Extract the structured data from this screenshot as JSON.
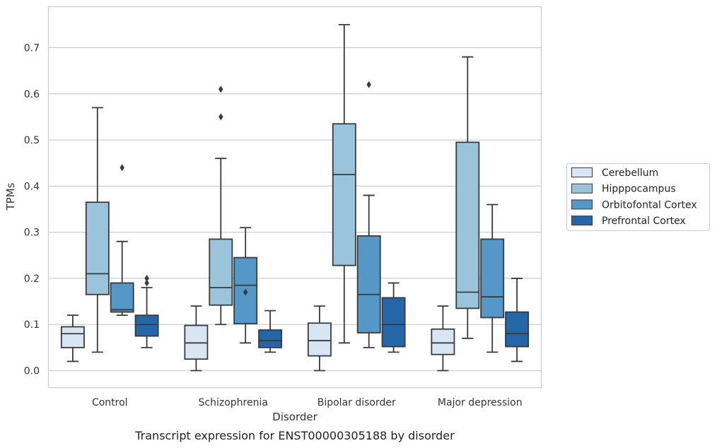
{
  "chart_data": {
    "type": "box",
    "title": "",
    "caption": "Transcript expression for ENST00000305188 by disorder",
    "xlabel": "Disorder",
    "ylabel": "TPMs",
    "ylim": [
      -0.036,
      0.79
    ],
    "yticks": [
      "0.0",
      "0.1",
      "0.2",
      "0.3",
      "0.4",
      "0.5",
      "0.6",
      "0.7"
    ],
    "grid": "horizontal",
    "legend_position": "right",
    "categories": [
      "Control",
      "Schizophrenia",
      "Bipolar disorder",
      "Major depression"
    ],
    "series": [
      {
        "name": "Cerebellum",
        "color": "#d8e6f4",
        "boxes": [
          {
            "whislo": 0.02,
            "q1": 0.05,
            "med": 0.08,
            "q3": 0.095,
            "whishi": 0.12,
            "fliers": []
          },
          {
            "whislo": 0.0,
            "q1": 0.025,
            "med": 0.06,
            "q3": 0.098,
            "whishi": 0.14,
            "fliers": []
          },
          {
            "whislo": 0.0,
            "q1": 0.032,
            "med": 0.065,
            "q3": 0.103,
            "whishi": 0.14,
            "fliers": []
          },
          {
            "whislo": 0.0,
            "q1": 0.035,
            "med": 0.06,
            "q3": 0.09,
            "whishi": 0.14,
            "fliers": []
          }
        ]
      },
      {
        "name": "Hipppocampus",
        "color": "#9ac4dc",
        "boxes": [
          {
            "whislo": 0.04,
            "q1": 0.165,
            "med": 0.21,
            "q3": 0.365,
            "whishi": 0.57,
            "fliers": []
          },
          {
            "whislo": 0.1,
            "q1": 0.142,
            "med": 0.18,
            "q3": 0.285,
            "whishi": 0.46,
            "fliers": [
              0.55,
              0.61
            ]
          },
          {
            "whislo": 0.06,
            "q1": 0.228,
            "med": 0.425,
            "q3": 0.535,
            "whishi": 0.75,
            "fliers": []
          },
          {
            "whislo": 0.07,
            "q1": 0.135,
            "med": 0.17,
            "q3": 0.495,
            "whishi": 0.68,
            "fliers": []
          }
        ]
      },
      {
        "name": "Orbitofontal Cortex",
        "color": "#5597c6",
        "boxes": [
          {
            "whislo": 0.12,
            "q1": 0.127,
            "med": 0.132,
            "q3": 0.19,
            "whishi": 0.28,
            "fliers": [
              0.44
            ]
          },
          {
            "whislo": 0.06,
            "q1": 0.102,
            "med": 0.185,
            "q3": 0.245,
            "whishi": 0.31,
            "fliers": [
              0.17
            ]
          },
          {
            "whislo": 0.05,
            "q1": 0.082,
            "med": 0.165,
            "q3": 0.292,
            "whishi": 0.38,
            "fliers": [
              0.62
            ]
          },
          {
            "whislo": 0.04,
            "q1": 0.115,
            "med": 0.16,
            "q3": 0.285,
            "whishi": 0.36,
            "fliers": []
          }
        ]
      },
      {
        "name": "Prefrontal Cortex",
        "color": "#2466a8",
        "boxes": [
          {
            "whislo": 0.05,
            "q1": 0.075,
            "med": 0.1,
            "q3": 0.12,
            "whishi": 0.18,
            "fliers": [
              0.19,
              0.2
            ]
          },
          {
            "whislo": 0.04,
            "q1": 0.05,
            "med": 0.065,
            "q3": 0.088,
            "whishi": 0.13,
            "fliers": []
          },
          {
            "whislo": 0.04,
            "q1": 0.052,
            "med": 0.1,
            "q3": 0.158,
            "whishi": 0.19,
            "fliers": []
          },
          {
            "whislo": 0.02,
            "q1": 0.052,
            "med": 0.08,
            "q3": 0.127,
            "whishi": 0.2,
            "fliers": []
          }
        ]
      }
    ]
  }
}
